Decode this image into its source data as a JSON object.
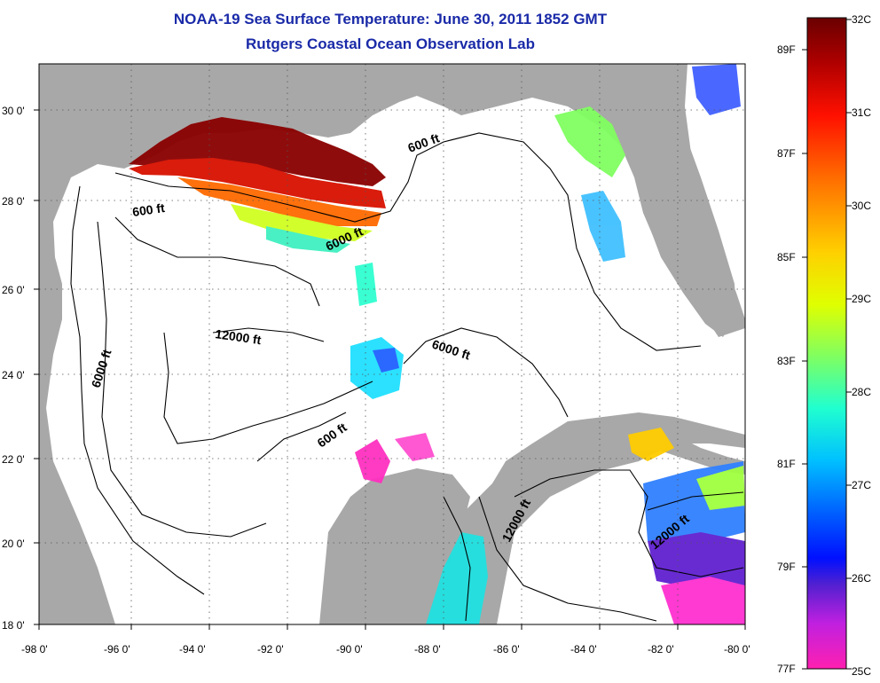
{
  "title": "NOAA-19 Sea Surface Temperature:  June 30, 2011 1852 GMT",
  "subtitle": "Rutgers Coastal Ocean Observation Lab",
  "map": {
    "lon_ticks": [
      "-98 0'",
      "-96 0'",
      "-94 0'",
      "-92 0'",
      "-90 0'",
      "-88 0'",
      "-86 0'",
      "-84 0'",
      "-82 0'",
      "-80 0'"
    ],
    "lat_ticks": [
      "18 0'",
      "20 0'",
      "22 0'",
      "24 0'",
      "26 0'",
      "28 0'",
      "30 0'"
    ],
    "lon_range": [
      -98,
      -80
    ],
    "lat_range": [
      18,
      31
    ],
    "contour_labels": [
      "600 ft",
      "600 ft",
      "6000 ft",
      "6000 ft",
      "6000 ft",
      "12000 ft",
      "600 ft",
      "12000 ft",
      "12000 ft"
    ],
    "colors": {
      "land": "#a8a8a8",
      "ocean": "#ffffff",
      "contour": "#000000"
    }
  },
  "colorbar": {
    "celsius_labels": [
      "32C",
      "31C",
      "30C",
      "29C",
      "28C",
      "27C",
      "26C",
      "25C"
    ],
    "fahrenheit_labels": [
      "89F",
      "87F",
      "85F",
      "83F",
      "81F",
      "79F",
      "77F"
    ],
    "gradient": [
      "#7a0000",
      "#c80000",
      "#ff2000",
      "#ff8000",
      "#ffd000",
      "#e8ff00",
      "#90ff40",
      "#30ffb0",
      "#00e0ff",
      "#0090ff",
      "#0020ff",
      "#4020e0",
      "#c020e0",
      "#ff20c0"
    ]
  }
}
